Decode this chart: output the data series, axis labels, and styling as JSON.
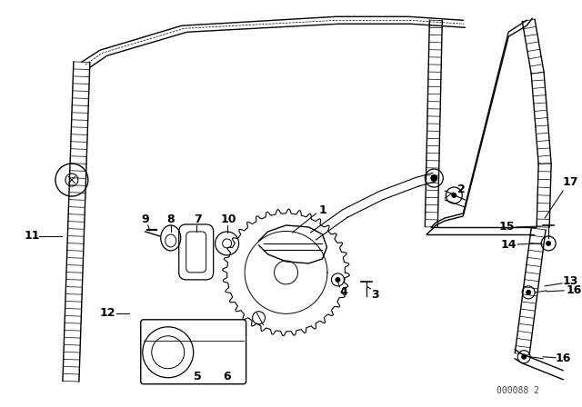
{
  "bg_color": "#ffffff",
  "line_color": "#000000",
  "label_color": "#000000",
  "fig_width": 6.4,
  "fig_height": 4.48,
  "watermark": "000088 2"
}
